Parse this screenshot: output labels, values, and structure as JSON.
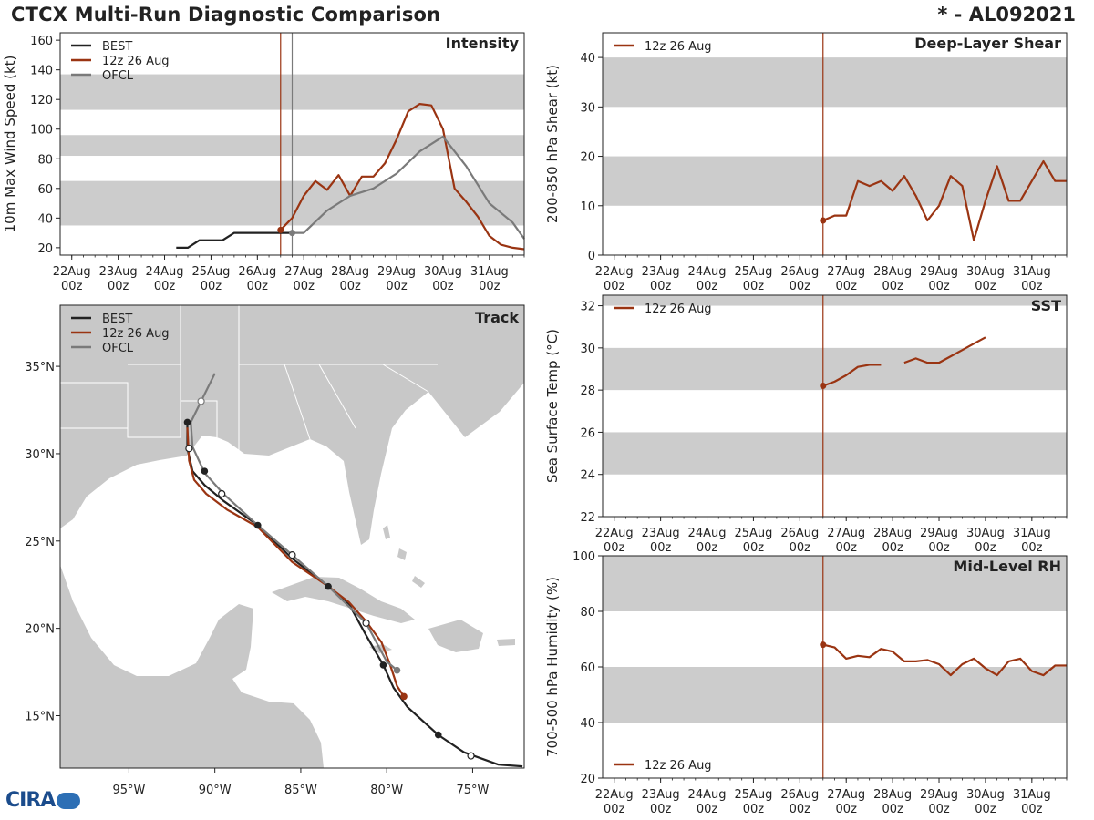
{
  "header": {
    "title": "CTCX Multi-Run Diagnostic Comparison",
    "storm": "* - AL092021"
  },
  "logo": {
    "text": "CIRA"
  },
  "colors": {
    "best": "#222222",
    "run": "#9a3412",
    "ofcl": "#7a7a7a",
    "band": "#cccccc",
    "land": "#c8c8c8",
    "border": "#ffffff"
  },
  "time_axis": {
    "ticks": [
      {
        "day": 0,
        "l1": "22Aug",
        "l2": "00z"
      },
      {
        "day": 1,
        "l1": "23Aug",
        "l2": "00z"
      },
      {
        "day": 2,
        "l1": "24Aug",
        "l2": "00z"
      },
      {
        "day": 3,
        "l1": "25Aug",
        "l2": "00z"
      },
      {
        "day": 4,
        "l1": "26Aug",
        "l2": "00z"
      },
      {
        "day": 5,
        "l1": "27Aug",
        "l2": "00z"
      },
      {
        "day": 6,
        "l1": "28Aug",
        "l2": "00z"
      },
      {
        "day": 7,
        "l1": "29Aug",
        "l2": "00z"
      },
      {
        "day": 8,
        "l1": "30Aug",
        "l2": "00z"
      },
      {
        "day": 9,
        "l1": "31Aug",
        "l2": "00z"
      }
    ],
    "xlim": [
      -0.25,
      9.75
    ]
  },
  "chart_data": [
    {
      "id": "intensity",
      "type": "line",
      "title": "Intensity",
      "ylabel": "10m Max Wind Speed (kt)",
      "ylim": [
        15,
        165
      ],
      "yticks": [
        20,
        40,
        60,
        80,
        100,
        120,
        140,
        160
      ],
      "bands": [
        [
          35,
          65
        ],
        [
          82,
          96
        ],
        [
          113,
          137
        ]
      ],
      "vlines": [
        {
          "x": 4.5,
          "series": "12z 26 Aug"
        },
        {
          "x": 4.75,
          "series": "OFCL"
        }
      ],
      "legend": [
        "BEST",
        "12z 26 Aug",
        "OFCL"
      ],
      "series": [
        {
          "name": "BEST",
          "x": [
            2.25,
            2.5,
            2.75,
            3.0,
            3.25,
            3.5,
            3.75,
            4.0,
            4.25,
            4.5,
            4.75
          ],
          "y": [
            20,
            20,
            25,
            25,
            25,
            30,
            30,
            30,
            30,
            30,
            30
          ]
        },
        {
          "name": "12z 26 Aug",
          "x": [
            4.5,
            4.75,
            5.0,
            5.25,
            5.5,
            5.75,
            6.0,
            6.25,
            6.5,
            6.75,
            7.0,
            7.25,
            7.5,
            7.75,
            8.0,
            8.25,
            8.5,
            8.75,
            9.0,
            9.25,
            9.5,
            9.75
          ],
          "y": [
            32,
            40,
            55,
            65,
            59,
            69,
            55,
            68,
            68,
            77,
            93,
            112,
            117,
            116,
            100,
            60,
            51,
            41,
            28,
            22,
            20,
            19
          ]
        },
        {
          "name": "OFCL",
          "x": [
            4.75,
            5.0,
            5.5,
            6.0,
            6.5,
            7.0,
            7.5,
            8.0,
            8.5,
            9.0,
            9.5,
            9.75
          ],
          "y": [
            30,
            30,
            45,
            55,
            60,
            70,
            85,
            95,
            75,
            50,
            37,
            26
          ]
        }
      ],
      "markers": [
        {
          "series": "12z 26 Aug",
          "x": 4.5,
          "y": 32
        },
        {
          "series": "OFCL",
          "x": 4.75,
          "y": 30
        }
      ]
    },
    {
      "id": "shear",
      "type": "line",
      "title": "Deep-Layer Shear",
      "ylabel": "200-850 hPa Shear (kt)",
      "ylim": [
        0,
        45
      ],
      "yticks": [
        0,
        10,
        20,
        30,
        40
      ],
      "bands": [
        [
          10,
          20
        ],
        [
          30,
          40
        ]
      ],
      "vlines": [
        {
          "x": 4.5,
          "series": "12z 26 Aug"
        }
      ],
      "legend": [
        "12z 26 Aug"
      ],
      "series": [
        {
          "name": "12z 26 Aug",
          "x": [
            4.5,
            4.75,
            5.0,
            5.25,
            5.5,
            5.75,
            6.0,
            6.25,
            6.5,
            6.75,
            7.0,
            7.25,
            7.5,
            7.75,
            8.0,
            8.25,
            8.5,
            8.75,
            9.0,
            9.25,
            9.5,
            9.75
          ],
          "y": [
            7,
            8,
            8,
            15,
            14,
            15,
            13,
            16,
            12,
            7,
            10,
            16,
            14,
            3,
            11,
            18,
            11,
            11,
            15,
            19,
            15,
            15
          ]
        }
      ],
      "markers": [
        {
          "series": "12z 26 Aug",
          "x": 4.5,
          "y": 7
        }
      ]
    },
    {
      "id": "sst",
      "type": "line",
      "title": "SST",
      "ylabel": "Sea Surface Temp (°C)",
      "ylim": [
        22,
        32.5
      ],
      "yticks": [
        22,
        24,
        26,
        28,
        30,
        32
      ],
      "bands": [
        [
          24,
          26
        ],
        [
          28,
          30
        ],
        [
          32,
          34
        ]
      ],
      "vlines": [
        {
          "x": 4.5,
          "series": "12z 26 Aug"
        }
      ],
      "legend": [
        "12z 26 Aug"
      ],
      "series": [
        {
          "name": "12z 26 Aug",
          "segments": [
            {
              "x": [
                4.5,
                4.75,
                5.0,
                5.25,
                5.5,
                5.75
              ],
              "y": [
                28.2,
                28.4,
                28.7,
                29.1,
                29.2,
                29.2
              ]
            },
            {
              "x": [
                6.25,
                6.5,
                6.75,
                7.0,
                7.25,
                7.5,
                7.75,
                8.0
              ],
              "y": [
                29.3,
                29.5,
                29.3,
                29.3,
                29.6,
                29.9,
                30.2,
                30.5
              ]
            }
          ]
        }
      ],
      "markers": [
        {
          "series": "12z 26 Aug",
          "x": 4.5,
          "y": 28.2
        }
      ]
    },
    {
      "id": "rh",
      "type": "line",
      "title": "Mid-Level RH",
      "ylabel": "700-500 hPa Humidity (%)",
      "ylim": [
        20,
        100
      ],
      "yticks": [
        20,
        40,
        60,
        80,
        100
      ],
      "bands": [
        [
          40,
          60
        ],
        [
          80,
          100
        ]
      ],
      "vlines": [
        {
          "x": 4.5,
          "series": "12z 26 Aug"
        }
      ],
      "legend": [
        "12z 26 Aug"
      ],
      "series": [
        {
          "name": "12z 26 Aug",
          "x": [
            4.5,
            4.75,
            5.0,
            5.25,
            5.5,
            5.75,
            6.0,
            6.25,
            6.5,
            6.75,
            7.0,
            7.25,
            7.5,
            7.75,
            8.0,
            8.25,
            8.5,
            8.75,
            9.0,
            9.25,
            9.5,
            9.75
          ],
          "y": [
            68,
            67,
            63,
            64,
            63.5,
            66.5,
            65.5,
            62,
            62,
            62.5,
            61,
            57,
            61,
            63,
            59.5,
            57,
            62,
            63,
            58.5,
            57,
            60.5,
            60.5
          ]
        }
      ],
      "markers": [
        {
          "series": "12z 26 Aug",
          "x": 4.5,
          "y": 68
        }
      ]
    },
    {
      "id": "track",
      "type": "map",
      "title": "Track",
      "lon_range": [
        -99,
        -72
      ],
      "lat_range": [
        12,
        38.5
      ],
      "xticks": [
        {
          "v": -95,
          "t": "95°W"
        },
        {
          "v": -90,
          "t": "90°W"
        },
        {
          "v": -85,
          "t": "85°W"
        },
        {
          "v": -80,
          "t": "80°W"
        },
        {
          "v": -75,
          "t": "75°W"
        }
      ],
      "yticks": [
        {
          "v": 15,
          "t": "15°N"
        },
        {
          "v": 20,
          "t": "20°N"
        },
        {
          "v": 25,
          "t": "25°N"
        },
        {
          "v": 30,
          "t": "30°N"
        },
        {
          "v": 35,
          "t": "35°N"
        }
      ],
      "legend": [
        "BEST",
        "12z 26 Aug",
        "OFCL"
      ],
      "series": [
        {
          "name": "BEST",
          "lon": [
            -72.1,
            -73.5,
            -75.5,
            -77.0,
            -78.8,
            -79.6,
            -80.2,
            -81.2,
            -82.2,
            -83.4,
            -85.5,
            -87.5,
            -89.5,
            -90.6,
            -91.3,
            -91.6,
            -91.6
          ],
          "lat": [
            12.1,
            12.2,
            12.9,
            13.9,
            15.5,
            16.6,
            17.9,
            19.6,
            21.4,
            22.4,
            24.0,
            25.9,
            27.3,
            28.2,
            29.0,
            30.3,
            31.8
          ]
        },
        {
          "name": "12z 26 Aug",
          "lon": [
            -79.0,
            -79.4,
            -79.8,
            -80.3,
            -81.2,
            -82.2,
            -83.4,
            -85.5,
            -87.5,
            -89.3,
            -90.5,
            -91.2,
            -91.5,
            -91.6
          ],
          "lat": [
            16.1,
            16.7,
            17.9,
            19.2,
            20.4,
            21.5,
            22.4,
            23.8,
            25.8,
            26.8,
            27.7,
            28.5,
            29.6,
            31.5
          ]
        },
        {
          "name": "OFCL",
          "lon": [
            -79.4,
            -80.0,
            -81.2,
            -83.4,
            -85.5,
            -87.5,
            -89.5,
            -90.6,
            -91.3,
            -91.4,
            -90.8,
            -90.0
          ],
          "lat": [
            17.6,
            18.1,
            20.3,
            22.4,
            24.2,
            25.9,
            27.7,
            28.9,
            30.4,
            31.8,
            33.0,
            34.6
          ]
        }
      ],
      "markers": [
        {
          "series": "BEST",
          "kind": "filled",
          "lon": -77.0,
          "lat": 13.9
        },
        {
          "series": "BEST",
          "kind": "open",
          "lon": -75.1,
          "lat": 12.7
        },
        {
          "series": "12z 26 Aug",
          "kind": "filled",
          "lon": -79.0,
          "lat": 16.1
        },
        {
          "series": "OFCL",
          "kind": "filled",
          "lon": -79.4,
          "lat": 17.6
        },
        {
          "series": "BEST",
          "kind": "filled",
          "lon": -80.2,
          "lat": 17.9
        },
        {
          "series": "BEST",
          "kind": "open",
          "lon": -81.2,
          "lat": 20.3
        },
        {
          "series": "BEST",
          "kind": "filled",
          "lon": -83.4,
          "lat": 22.4
        },
        {
          "series": "BEST",
          "kind": "open",
          "lon": -85.5,
          "lat": 24.2
        },
        {
          "series": "BEST",
          "kind": "filled",
          "lon": -87.5,
          "lat": 25.9
        },
        {
          "series": "BEST",
          "kind": "open",
          "lon": -89.6,
          "lat": 27.7
        },
        {
          "series": "BEST",
          "kind": "filled",
          "lon": -90.6,
          "lat": 29.0
        },
        {
          "series": "BEST",
          "kind": "open",
          "lon": -91.5,
          "lat": 30.3
        },
        {
          "series": "BEST",
          "kind": "filled",
          "lon": -91.6,
          "lat": 31.8
        },
        {
          "series": "OFCL",
          "kind": "open",
          "lon": -90.8,
          "lat": 33.0
        }
      ]
    }
  ]
}
